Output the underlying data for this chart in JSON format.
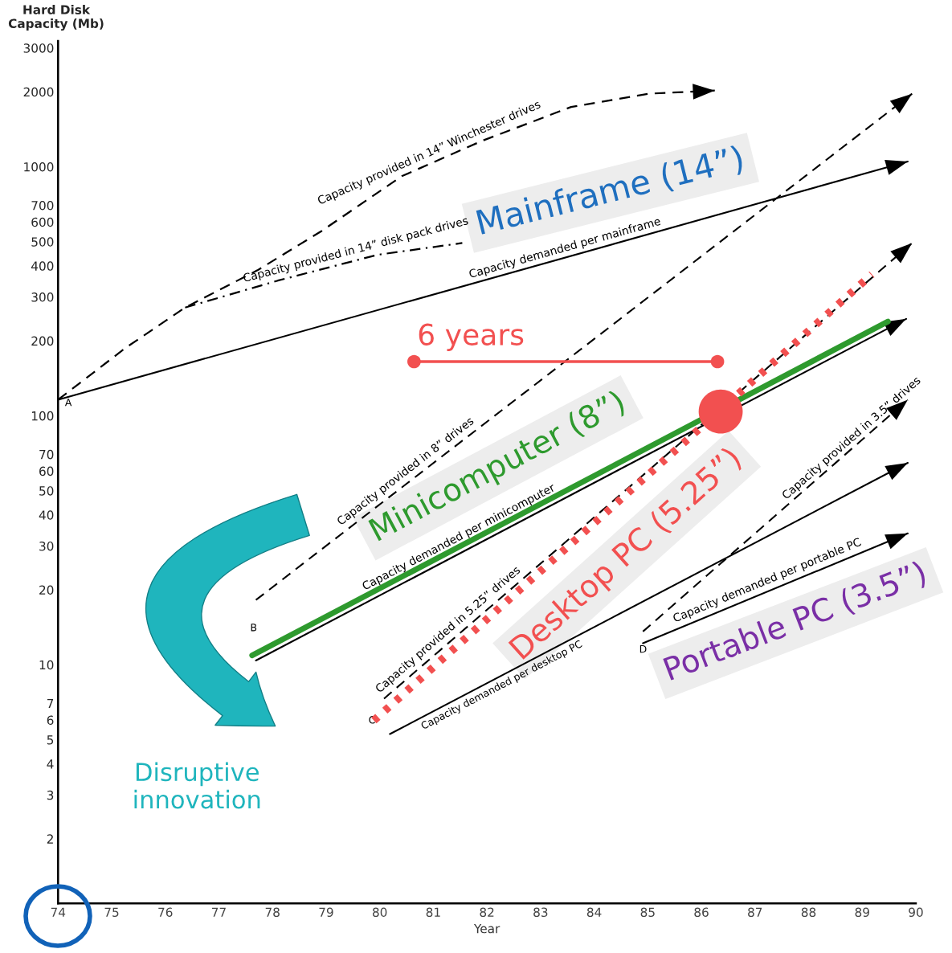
{
  "chart_data": {
    "type": "line",
    "xlabel": "Year",
    "ylabel": "Hard Disk\nCapacity (Mb)",
    "xlim": [
      74,
      90
    ],
    "xticks": [
      74,
      75,
      76,
      77,
      78,
      79,
      80,
      81,
      82,
      83,
      84,
      85,
      86,
      87,
      88,
      89,
      90
    ],
    "ylim": [
      1.1,
      3200
    ],
    "yticks": [
      2,
      3,
      4,
      5,
      6,
      7,
      10,
      20,
      30,
      40,
      50,
      60,
      70,
      100,
      200,
      300,
      400,
      500,
      600,
      700,
      1000,
      2000,
      3000
    ],
    "log": "y",
    "grid": false,
    "series": [
      {
        "name": "Capacity provided in 14” Winchester drives",
        "color": "#000000",
        "line_style": "dashed",
        "x": [
          74,
          75.27,
          76.37,
          77.72,
          78.91,
          80.41,
          81.91,
          83.57,
          85.01,
          86.25
        ],
        "values": [
          116,
          188,
          272,
          384,
          551,
          916,
          1271,
          1738,
          1965,
          2023
        ]
      },
      {
        "name": "Capacity provided in 14” disk pack drives",
        "color": "#000000",
        "line_style": "dashdot",
        "x": [
          76.37,
          78.1,
          79.96,
          81.54
        ],
        "values": [
          272,
          349,
          443,
          494
        ]
      },
      {
        "name": "Capacity demanded per mainframe",
        "color": "#000000",
        "line_style": "solid",
        "x": [
          74,
          89.85
        ],
        "values": [
          116,
          1050
        ]
      },
      {
        "name": "Capacity provided in 8” drives",
        "color": "#000000",
        "line_style": "dashed",
        "x": [
          77.69,
          89.93
        ],
        "values": [
          18.2,
          1965
        ]
      },
      {
        "name": "Capacity demanded per minicomputer",
        "color": "#000000",
        "line_style": "solid",
        "x": [
          77.69,
          89.82
        ],
        "values": [
          10.4,
          245
        ]
      },
      {
        "color": "#2e9a2e",
        "line_style": "solid",
        "x": [
          77.62,
          89.48
        ],
        "values": [
          10.9,
          239
        ]
      },
      {
        "name": "Capacity provided in 5.25” drives",
        "color": "#000000",
        "line_style": "dashed",
        "x": [
          80.08,
          89.93
        ],
        "values": [
          7.31,
          494
        ]
      },
      {
        "color": "#f25050",
        "line_style": "dotted",
        "x": [
          79.89,
          89.18
        ],
        "values": [
          5.97,
          370
        ]
      },
      {
        "name": "Capacity demanded per desktop PC",
        "color": "#000000",
        "line_style": "solid",
        "x": [
          80.19,
          89.85
        ],
        "values": [
          5.27,
          64.7
        ]
      },
      {
        "name": "Capacity provided in 3.5” drives",
        "color": "#000000",
        "line_style": "dashed",
        "x": [
          84.91,
          89.85
        ],
        "values": [
          13.6,
          116
        ]
      },
      {
        "name": "Capacity demanded per portable PC",
        "color": "#000000",
        "line_style": "solid",
        "x": [
          84.91,
          89.85
        ],
        "values": [
          12.2,
          33.7
        ]
      },
      {
        "name": "6 years",
        "color": "#f25050",
        "line_style": "solid",
        "marker": "circle",
        "x": [
          80.64,
          86.3
        ],
        "values": [
          165,
          165
        ]
      },
      {
        "type": "scatter",
        "color": "#f25050",
        "marker": "circle",
        "x": [
          86.36
        ],
        "values": [
          104
        ]
      }
    ],
    "annotations": [
      "Mainframe (14”)",
      "Portable PC (3.5”)",
      "Minicomputer (8”)",
      "Desktop PC (5.25”)",
      "Disruptive\ninnovation",
      "A",
      "B",
      "C",
      "D"
    ]
  }
}
